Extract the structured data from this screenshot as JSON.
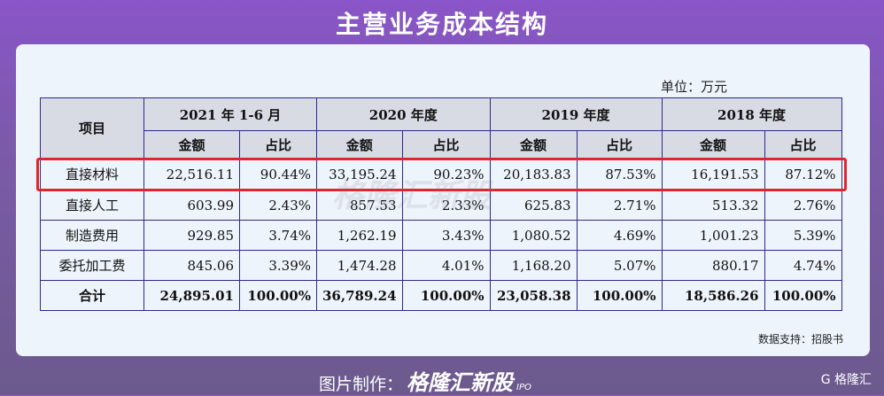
{
  "title": "主营业务成本结构",
  "unit": "单位：万元",
  "table": {
    "header_item": "项目",
    "periods": [
      "2021 年 1-6 月",
      "2020 年度",
      "2019 年度",
      "2018 年度"
    ],
    "sub": [
      "金额",
      "占比"
    ],
    "rows": [
      {
        "name": "直接材料",
        "cells": [
          "22,516.11",
          "90.44%",
          "33,195.24",
          "90.23%",
          "20,183.83",
          "87.53%",
          "16,191.53",
          "87.12%"
        ]
      },
      {
        "name": "直接人工",
        "cells": [
          "603.99",
          "2.43%",
          "857.53",
          "2.33%",
          "625.83",
          "2.71%",
          "513.32",
          "2.76%"
        ]
      },
      {
        "name": "制造费用",
        "cells": [
          "929.85",
          "3.74%",
          "1,262.19",
          "3.43%",
          "1,080.52",
          "4.69%",
          "1,001.23",
          "5.39%"
        ]
      },
      {
        "name": "委托加工费",
        "cells": [
          "845.06",
          "3.39%",
          "1,474.28",
          "4.01%",
          "1,168.20",
          "5.07%",
          "880.17",
          "4.74%"
        ]
      },
      {
        "name": "合计",
        "cells": [
          "24,895.01",
          "100.00%",
          "36,789.24",
          "100.00%",
          "23,058.38",
          "100.00%",
          "18,586.26",
          "100.00%"
        ]
      }
    ]
  },
  "watermark": "格隆汇新股",
  "source": "数据支持：招股书",
  "footer": {
    "label": "图片制作：",
    "brand": "格隆汇新股",
    "ipo": "IPO"
  },
  "logo": "G 格隆汇"
}
